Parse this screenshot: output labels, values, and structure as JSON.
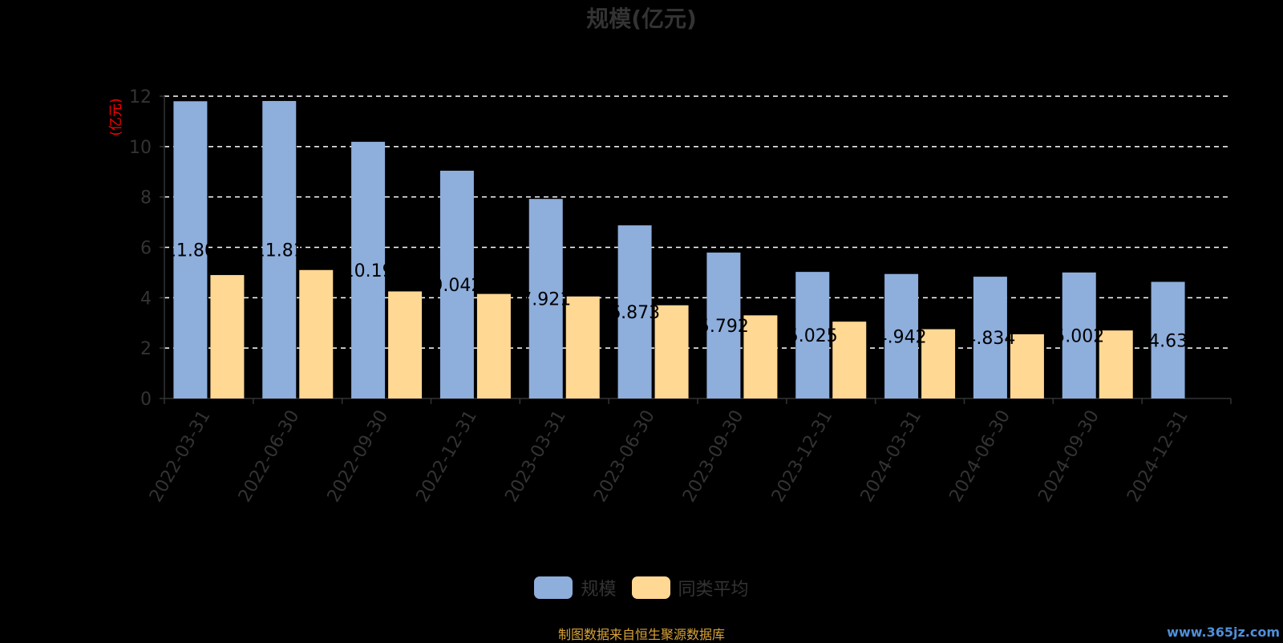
{
  "title": "规模(亿元)",
  "source_text": "制图数据来自恒生聚源数据库",
  "watermark_text": "www.365jz.com",
  "colors": {
    "series1": "#8eaedc",
    "series2": "#ffd893",
    "axis": "#333333",
    "grid": "#ffffff",
    "ylabel": "#ff0000"
  },
  "chart_data": {
    "type": "bar",
    "title": "规模(亿元)",
    "ylabel": "(亿元)",
    "xlabel": "",
    "ylim": [
      0,
      12
    ],
    "yticks": [
      0,
      2,
      4,
      6,
      8,
      10,
      12
    ],
    "grid": true,
    "legend_position": "bottom",
    "categories": [
      "2022-03-31",
      "2022-06-30",
      "2022-09-30",
      "2022-12-31",
      "2023-03-31",
      "2023-06-30",
      "2023-09-30",
      "2023-12-31",
      "2024-03-31",
      "2024-06-30",
      "2024-09-30",
      "2024-12-31"
    ],
    "series": [
      {
        "name": "规模",
        "values": [
          11.8,
          11.81,
          10.19,
          9.042,
          7.921,
          6.873,
          5.792,
          5.025,
          4.942,
          4.834,
          5.002,
          4.63
        ],
        "labels": [
          "11.80",
          "11.81",
          "10.19",
          "9.042",
          "7.921",
          "6.873",
          "5.792",
          "5.025",
          "4.942",
          "4.834",
          "5.002",
          "4.63"
        ]
      },
      {
        "name": "同类平均",
        "values": [
          4.9,
          5.1,
          4.25,
          4.15,
          4.05,
          3.7,
          3.3,
          3.05,
          2.75,
          2.55,
          2.7,
          null
        ]
      }
    ]
  }
}
